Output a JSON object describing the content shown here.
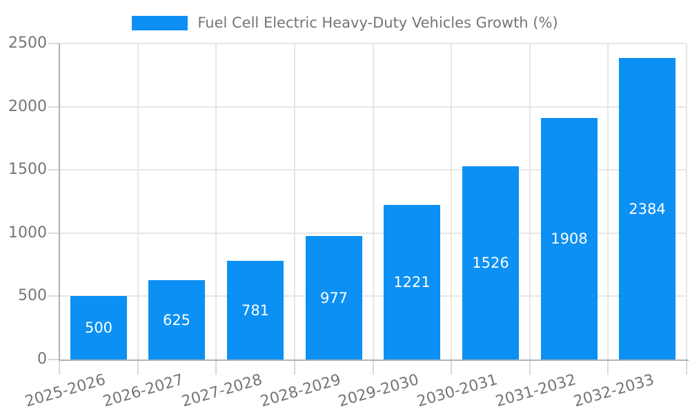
{
  "chart_data": {
    "type": "bar",
    "legend": {
      "label": "Fuel Cell Electric Heavy-Duty Vehicles Growth (%)",
      "position": "top"
    },
    "categories": [
      "2025-2026",
      "2026-2027",
      "2027-2028",
      "2028-2029",
      "2029-2030",
      "2030-2031",
      "2031-2032",
      "2032-2033"
    ],
    "series": [
      {
        "name": "Fuel Cell Electric Heavy-Duty Vehicles Growth (%)",
        "values": [
          500,
          625,
          781,
          977,
          1221,
          1526,
          1908,
          2384
        ]
      }
    ],
    "show_bar_value_labels": true,
    "xlabel": "",
    "ylabel": "",
    "ylim": [
      0,
      2500
    ],
    "yticks": [
      0,
      500,
      1000,
      1500,
      2000,
      2500
    ],
    "grid": true,
    "x_tick_rotation_deg": -16,
    "colors": {
      "bar": "#0c90f3",
      "bar_label": "#ffffff",
      "axis_text": "#757575",
      "gridline": "#e6e6e6",
      "axis_line": "#b0b0b0",
      "tick": "#d9d9d9",
      "background": "#ffffff"
    }
  }
}
